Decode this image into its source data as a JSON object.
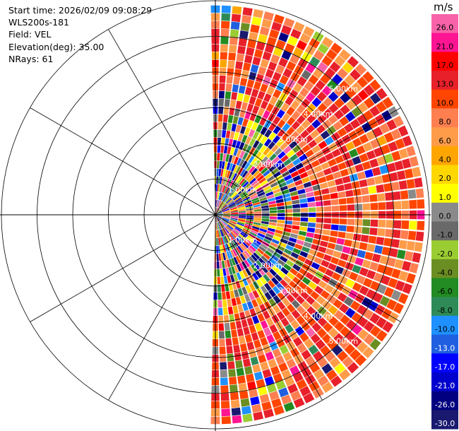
{
  "info": {
    "start_time": "Start time: 2026/02/09 09:08:29",
    "instrument": "WLS200s-181",
    "field": "Field: VEL",
    "elevation": "Elevation(deg): 35.00",
    "nrays": "NRays: 61"
  },
  "chart_data": {
    "type": "heatmap",
    "projection": "polar-ppi",
    "azimuth_start_deg": 0,
    "azimuth_end_deg": 180,
    "ray_count": 61,
    "range_max_km": 6.0,
    "range_ring_labels": [
      "1.00km",
      "2.00km",
      "3.00km",
      "4.00km",
      "5.00km"
    ],
    "field": "VEL",
    "units": "m/s",
    "colorbar": {
      "label": "m/s",
      "ticks": [
        "26.0",
        "21.0",
        "17.0",
        "13.0",
        "10.0",
        "8.0",
        "6.0",
        "4.0",
        "2.0",
        "1.0",
        "0.0",
        "-1.0",
        "-2.0",
        "-4.0",
        "-6.0",
        "-8.0",
        "-10.0",
        "-13.0",
        "-17.0",
        "-21.0",
        "-26.0",
        "-30.0"
      ],
      "colors": [
        "#f862a8",
        "#ff1493",
        "#ff0000",
        "#e8202a",
        "#ff4500",
        "#ff7f50",
        "#ff9c4a",
        "#ffa500",
        "#ffd700",
        "#ffff00",
        "#8a8a8a",
        "#696969",
        "#9acd32",
        "#6b8e23",
        "#228b22",
        "#2e8b57",
        "#1e90ff",
        "#1f5fe0",
        "#0000ff",
        "#0000cd",
        "#000080",
        "#191970"
      ]
    }
  }
}
